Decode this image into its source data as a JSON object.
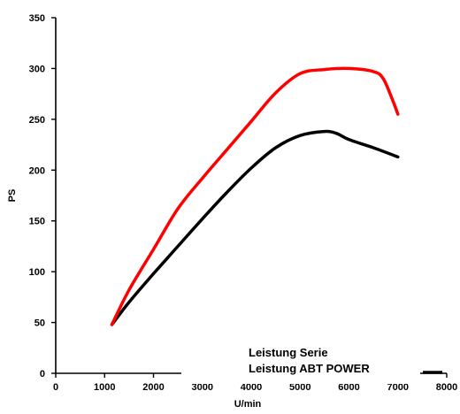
{
  "chart_data": {
    "type": "line",
    "xlabel": "U/min",
    "ylabel": "PS",
    "xlim": [
      0,
      8000
    ],
    "ylim": [
      0,
      350
    ],
    "x_ticks": [
      "0",
      "1000",
      "2000",
      "3000",
      "4000",
      "5000",
      "6000",
      "7000",
      "8000"
    ],
    "y_ticks": [
      "0",
      "50",
      "100",
      "150",
      "200",
      "250",
      "300",
      "350"
    ],
    "grid": false,
    "legend_position": "bottom-center",
    "series": [
      {
        "name": "Leistung Serie",
        "color": "#000000",
        "x": [
          1150,
          1500,
          2000,
          2500,
          3000,
          3500,
          4000,
          4500,
          5000,
          5500,
          5750,
          6000,
          6500,
          7000
        ],
        "y": [
          48,
          70,
          98,
          125,
          152,
          178,
          202,
          222,
          234,
          238,
          236,
          230,
          222,
          213
        ]
      },
      {
        "name": "Leistung ABT POWER",
        "color": "#ff0000",
        "x": [
          1150,
          1500,
          2000,
          2500,
          3000,
          3500,
          4000,
          4500,
          5000,
          5500,
          6000,
          6500,
          6700,
          6900,
          7000
        ],
        "y": [
          48,
          82,
          122,
          162,
          192,
          220,
          248,
          276,
          295,
          299,
          300,
          297,
          290,
          268,
          255
        ]
      }
    ]
  }
}
